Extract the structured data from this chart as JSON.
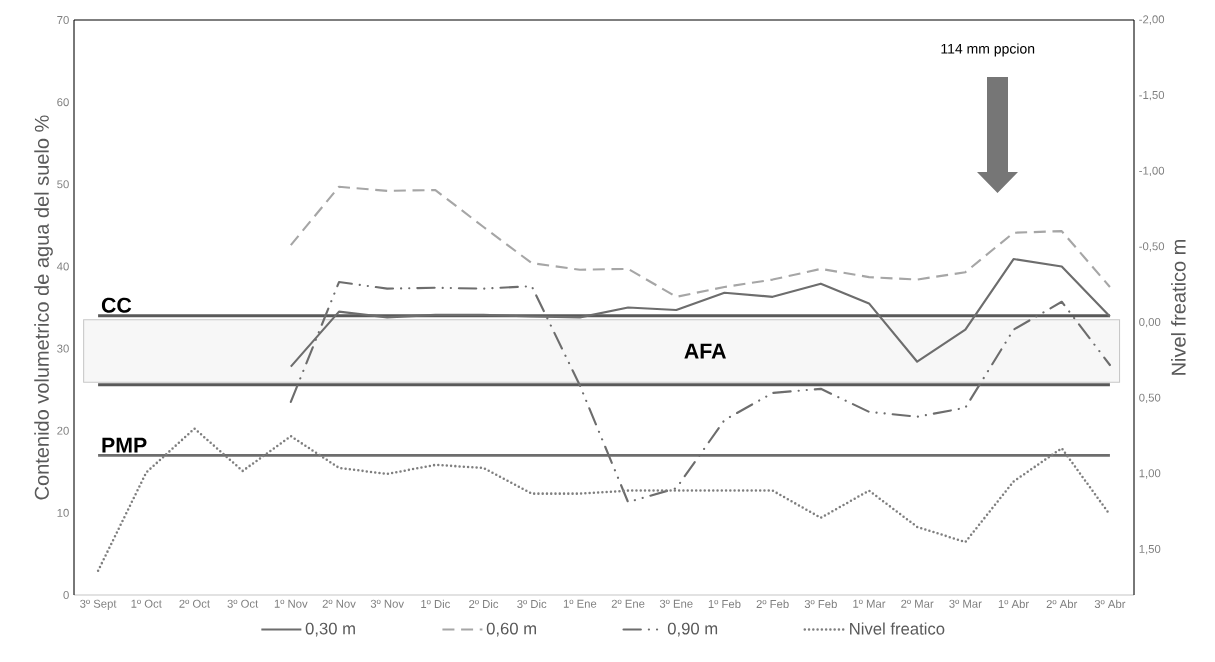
{
  "chart_data": {
    "type": "line",
    "ylabel": "Contenido volumetrico de agua del suelo %",
    "y2label": "Nivel freatico m",
    "categories": [
      "3º Sept",
      "1º Oct",
      "2º Oct",
      "3º Oct",
      "1º Nov",
      "2º Nov",
      "3º Nov",
      "1º Dic",
      "2º Dic",
      "3º Dic",
      "1º Ene",
      "2º Ene",
      "3º Ene",
      "1º Feb",
      "2º Feb",
      "3º Feb",
      "1º Mar",
      "2º Mar",
      "3º Mar",
      "1º Abr",
      "2º Abr",
      "3º Abr"
    ],
    "series": [
      {
        "name": "0,30 m",
        "color": "#6d6d6d",
        "line_style": "solid",
        "values": [
          null,
          null,
          null,
          null,
          27.8,
          34.5,
          33.8,
          34.1,
          34.1,
          33.9,
          33.8,
          35.0,
          34.7,
          36.8,
          36.3,
          37.9,
          35.5,
          28.4,
          32.3,
          40.9,
          40.0,
          33.9
        ]
      },
      {
        "name": "0,60 m",
        "color": "#a6a6a6",
        "line_style": "dashed",
        "values": [
          null,
          null,
          null,
          null,
          42.6,
          49.7,
          49.2,
          49.3,
          44.8,
          40.4,
          39.6,
          39.7,
          36.3,
          37.5,
          38.4,
          39.7,
          38.7,
          38.4,
          39.3,
          44.1,
          44.3,
          37.5
        ]
      },
      {
        "name": "0,90 m",
        "color": "#6d6d6d",
        "line_style": "dashdot",
        "values": [
          null,
          null,
          null,
          null,
          23.5,
          38.1,
          37.3,
          37.4,
          37.3,
          37.6,
          25.5,
          11.3,
          13.0,
          21.3,
          24.6,
          25.1,
          22.3,
          21.7,
          22.8,
          32.3,
          35.7,
          28.0
        ]
      },
      {
        "name": "Nivel freatico",
        "color": "#7f7f7f",
        "line_style": "dotted",
        "axis": "y2",
        "values": [
          1.64,
          0.99,
          0.7,
          0.98,
          0.75,
          0.96,
          1.0,
          0.94,
          0.96,
          1.13,
          1.13,
          1.11,
          1.11,
          1.11,
          1.11,
          1.29,
          1.11,
          1.35,
          1.45,
          1.05,
          0.83,
          1.27
        ]
      }
    ],
    "ylim": [
      0,
      70
    ],
    "yticks": [
      0,
      10,
      20,
      30,
      40,
      50,
      60,
      70
    ],
    "y2lim": [
      1.8,
      -2.0
    ],
    "y2ticks": [
      {
        "value": -2.0,
        "label": "-2,00"
      },
      {
        "value": -1.5,
        "label": "-1,50"
      },
      {
        "value": -1.0,
        "label": "-1,00"
      },
      {
        "value": -0.5,
        "label": "-0,50"
      },
      {
        "value": 0.0,
        "label": "0,00"
      },
      {
        "value": 0.5,
        "label": "0,50"
      },
      {
        "value": 1.0,
        "label": "1,00"
      },
      {
        "value": 1.5,
        "label": "1,50"
      }
    ],
    "ref_lines": [
      {
        "axis": "y",
        "value": 34.0,
        "label": "CC",
        "color": "#595959"
      },
      {
        "axis": "y",
        "value": 25.6,
        "color": "#595959"
      },
      {
        "axis": "y",
        "value": 17.0,
        "label": "PMP",
        "color": "#6d6d6d"
      }
    ],
    "bands": [
      {
        "axis": "y",
        "from": 25.9,
        "to": 33.5,
        "label": "AFA",
        "color": "#f7f7f7"
      }
    ],
    "annotations": [
      "114 mm ppcion"
    ],
    "marker": "none",
    "grid": false,
    "legend": "bottom"
  }
}
